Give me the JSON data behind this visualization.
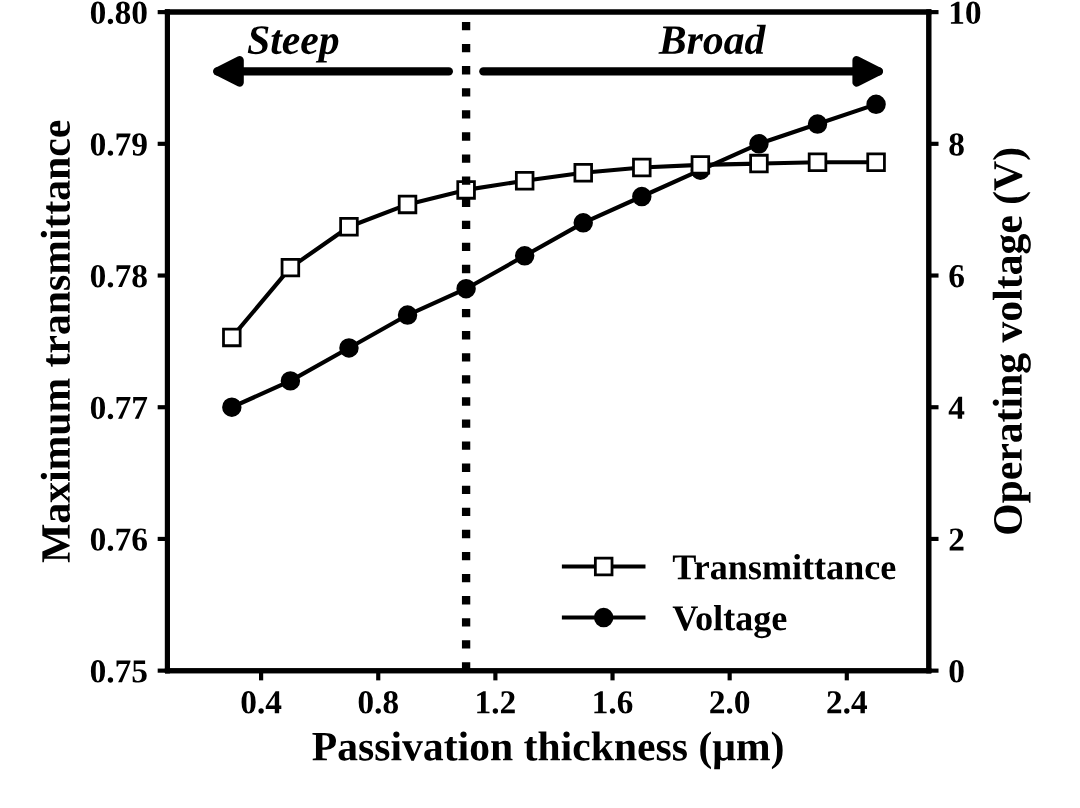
{
  "chart_data": {
    "type": "line",
    "xlabel": "Passivation thickness (μm)",
    "ylabel": "Maximum transmittance",
    "y2label": "Operating voltage (V)",
    "x": [
      0.3,
      0.5,
      0.7,
      0.9,
      1.1,
      1.3,
      1.5,
      1.7,
      1.9,
      2.1,
      2.3,
      2.5
    ],
    "series": [
      {
        "name": "Transmittance",
        "color": "#000000",
        "marker": "square",
        "values": [
          0.7753,
          0.7806,
          0.7837,
          0.7854,
          0.7865,
          0.7872,
          0.7878,
          0.7882,
          0.7884,
          0.7885,
          0.7886,
          0.7886
        ]
      },
      {
        "name": "Voltage",
        "color": "#000000",
        "marker": "circle",
        "axis": "y2",
        "values": [
          4.0,
          4.4,
          4.9,
          5.4,
          5.8,
          6.3,
          6.8,
          7.2,
          7.6,
          8.0,
          8.3,
          8.6
        ]
      }
    ],
    "xlim": [
      0.08,
      2.68
    ],
    "xticks": [
      0.4,
      0.8,
      1.2,
      1.6,
      {
        "value": 2.0,
        "label": "2.0"
      },
      2.4
    ],
    "ylim": [
      0.75,
      0.8
    ],
    "yticks": [
      0.75,
      0.76,
      0.77,
      0.78,
      0.79,
      {
        "value": 0.8,
        "label": "0.80"
      }
    ],
    "y2lim": [
      0,
      10
    ],
    "y2ticks": [
      0,
      2,
      4,
      6,
      8,
      10
    ],
    "ref_lines": [
      {
        "axis": "x",
        "value": 1.1,
        "color": "#000000",
        "line_style": "dotted"
      }
    ],
    "annotations": [
      "Steep",
      "Broad"
    ],
    "legend": "bottom right",
    "grid": false,
    "line_style": "solid"
  }
}
